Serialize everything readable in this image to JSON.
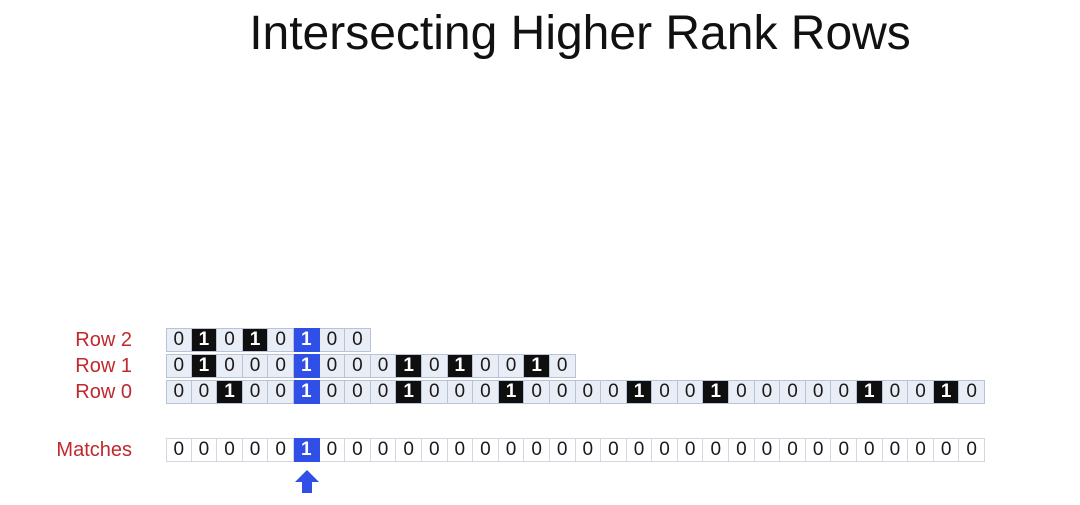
{
  "title": "Intersecting Higher Rank Rows",
  "highlight_index": 5,
  "rows": [
    {
      "label": "Row 2",
      "style": "rank",
      "bits": [
        0,
        1,
        0,
        1,
        0,
        1,
        0,
        0
      ]
    },
    {
      "label": "Row 1",
      "style": "rank",
      "bits": [
        0,
        1,
        0,
        0,
        0,
        1,
        0,
        0,
        0,
        1,
        0,
        1,
        0,
        0,
        1,
        0
      ]
    },
    {
      "label": "Row 0",
      "style": "rank",
      "bits": [
        0,
        0,
        1,
        0,
        0,
        1,
        0,
        0,
        0,
        1,
        0,
        0,
        0,
        1,
        0,
        0,
        0,
        0,
        1,
        0,
        0,
        1,
        0,
        0,
        0,
        0,
        0,
        1,
        0,
        0,
        1,
        0
      ]
    },
    {
      "label": "Matches",
      "style": "matches",
      "bits": [
        0,
        0,
        0,
        0,
        0,
        1,
        0,
        0,
        0,
        0,
        0,
        0,
        0,
        0,
        0,
        0,
        0,
        0,
        0,
        0,
        0,
        0,
        0,
        0,
        0,
        0,
        0,
        0,
        0,
        0,
        0,
        0
      ]
    }
  ],
  "colors": {
    "label": "#c0282d",
    "one": "#0f0f0f",
    "highlight": "#2f4fe6",
    "cell": "#e9edf5"
  },
  "arrow_icon": "up-arrow-icon"
}
